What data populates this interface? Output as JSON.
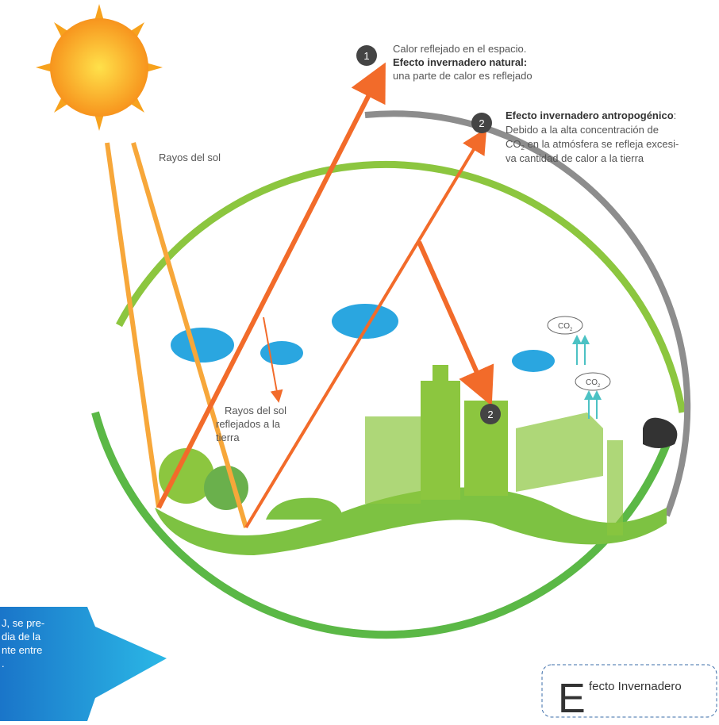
{
  "callouts": [
    {
      "number": "1",
      "lines": [
        "Calor reflejado en el espacio.",
        "Efecto invernadero natural:",
        "una parte de calor es reflejado"
      ]
    },
    {
      "number": "2",
      "heading": "Efecto invernadero antropogénico",
      "heading_suffix": ":",
      "line1": "Debido a la alta concentración de",
      "co": "CO",
      "sub": "2",
      "line2": " en la atmósfera se refleja excesi-",
      "line3": "va cantidad de calor a la tierra"
    }
  ],
  "labels": {
    "sun_rays": "Rayos del sol",
    "reflected": [
      "Rayos del sol",
      "reflejados a la",
      "tierra"
    ],
    "marker": "2"
  },
  "co2_tags": [
    {
      "co": "CO",
      "sub": "2"
    },
    {
      "co": "CO",
      "sub": "2"
    }
  ],
  "side_note": [
    "J, se pre-",
    "dia de la",
    "nte entre",
    "."
  ],
  "footer": {
    "initial": "E",
    "rest": "fecto Invernadero"
  }
}
